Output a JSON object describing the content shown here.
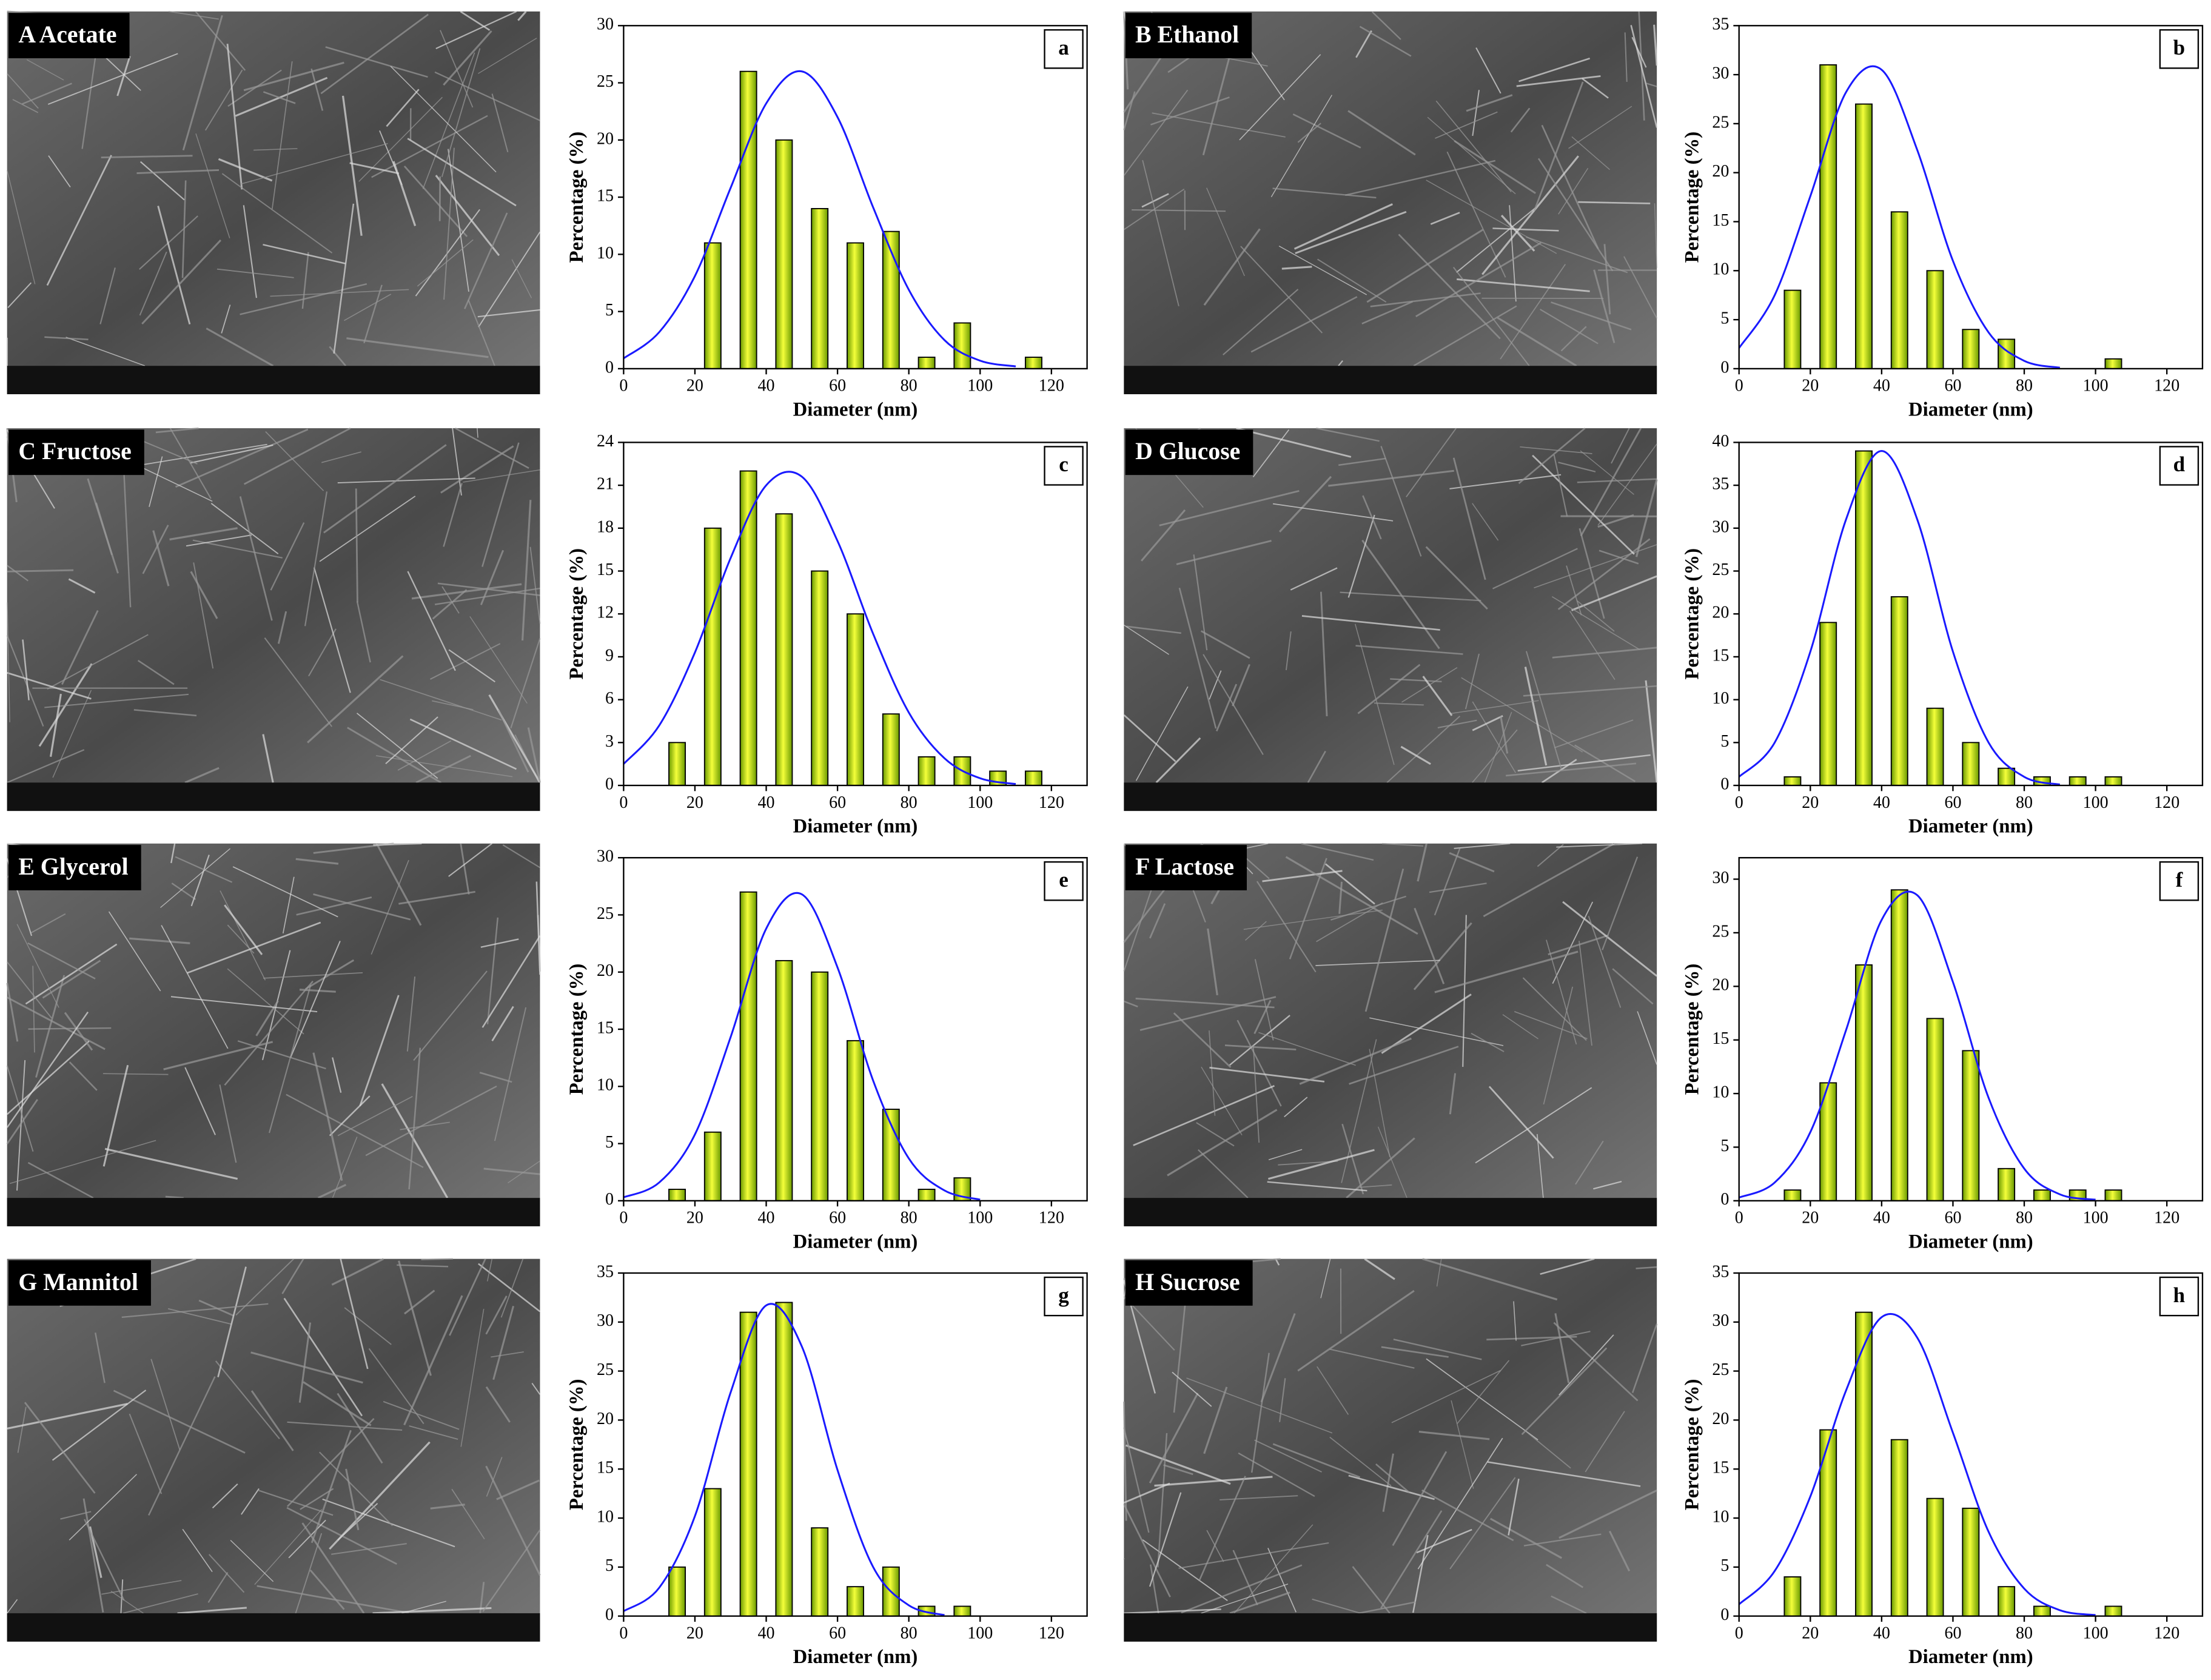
{
  "images": [
    {
      "label": "A Acetate"
    },
    {
      "label": "B Ethanol"
    },
    {
      "label": "C Fructose"
    },
    {
      "label": "D Glucose"
    },
    {
      "label": "E Glycerol"
    },
    {
      "label": "F Lactose"
    },
    {
      "label": "G Mannitol"
    },
    {
      "label": "H Sucrose"
    }
  ],
  "chart_data": [
    {
      "type": "bar",
      "panel_label": "a",
      "xlabel": "Diameter (nm)",
      "ylabel": "Percentage (%)",
      "color": "#c6e600",
      "x": [
        25,
        35,
        45,
        55,
        65,
        75,
        85,
        95,
        115
      ],
      "values": [
        11,
        26,
        20,
        14,
        11,
        12,
        1,
        4,
        1
      ],
      "xlim": [
        0,
        130
      ],
      "xticks": [
        0,
        20,
        40,
        60,
        80,
        100,
        120
      ],
      "ylim": [
        0,
        30
      ],
      "yticks": [
        0,
        5,
        10,
        15,
        20,
        25,
        30
      ],
      "fit": {
        "color": "#1a1aff",
        "x": [
          0,
          10,
          20,
          30,
          40,
          50,
          60,
          70,
          80,
          90,
          100,
          110
        ],
        "values": [
          0.9,
          3.2,
          8.1,
          15.8,
          23.2,
          26.0,
          22.0,
          14.1,
          6.9,
          2.5,
          0.7,
          0.2
        ]
      }
    },
    {
      "type": "bar",
      "panel_label": "b",
      "xlabel": "Diameter (nm)",
      "ylabel": "Percentage (%)",
      "color": "#c6e600",
      "x": [
        15,
        25,
        35,
        45,
        55,
        65,
        75,
        105
      ],
      "values": [
        8,
        31,
        27,
        16,
        10,
        4,
        3,
        1
      ],
      "xlim": [
        0,
        130
      ],
      "xticks": [
        0,
        20,
        40,
        60,
        80,
        100,
        120
      ],
      "ylim": [
        0,
        35
      ],
      "yticks": [
        0,
        5,
        10,
        15,
        20,
        25,
        30,
        35
      ],
      "fit": {
        "color": "#1a1aff",
        "x": [
          0,
          10,
          20,
          30,
          40,
          50,
          60,
          70,
          80,
          90
        ],
        "values": [
          2.1,
          7.5,
          17.6,
          28.2,
          30.5,
          22.3,
          11.0,
          3.7,
          0.8,
          0.1
        ]
      }
    },
    {
      "type": "bar",
      "panel_label": "c",
      "xlabel": "Diameter (nm)",
      "ylabel": "Percentage (%)",
      "color": "#c6e600",
      "x": [
        15,
        25,
        35,
        45,
        55,
        65,
        75,
        85,
        95,
        105,
        115
      ],
      "values": [
        3,
        18,
        22,
        19,
        15,
        12,
        5,
        2,
        2,
        1,
        1
      ],
      "xlim": [
        0,
        130
      ],
      "xticks": [
        0,
        20,
        40,
        60,
        80,
        100,
        120
      ],
      "ylim": [
        0,
        24
      ],
      "yticks": [
        0,
        3,
        6,
        9,
        12,
        15,
        18,
        21,
        24
      ],
      "fit": {
        "color": "#1a1aff",
        "x": [
          0,
          10,
          20,
          30,
          40,
          50,
          60,
          70,
          80,
          90,
          100,
          110
        ],
        "values": [
          1.5,
          4.2,
          9.3,
          15.9,
          21.0,
          21.6,
          17.1,
          10.6,
          5.1,
          1.9,
          0.5,
          0.1
        ]
      }
    },
    {
      "type": "bar",
      "panel_label": "d",
      "xlabel": "Diameter (nm)",
      "ylabel": "Percentage (%)",
      "color": "#c6e600",
      "x": [
        15,
        25,
        35,
        45,
        55,
        65,
        75,
        85,
        95,
        105
      ],
      "values": [
        1,
        19,
        39,
        22,
        9,
        5,
        2,
        1,
        1,
        1
      ],
      "xlim": [
        0,
        130
      ],
      "xticks": [
        0,
        20,
        40,
        60,
        80,
        100,
        120
      ],
      "ylim": [
        0,
        40
      ],
      "yticks": [
        0,
        5,
        10,
        15,
        20,
        25,
        30,
        35,
        40
      ],
      "fit": {
        "color": "#1a1aff",
        "x": [
          0,
          10,
          20,
          30,
          40,
          50,
          60,
          70,
          80,
          90
        ],
        "values": [
          1.0,
          5.0,
          15.6,
          31.0,
          39.0,
          31.0,
          15.6,
          5.0,
          1.0,
          0.1
        ]
      }
    },
    {
      "type": "bar",
      "panel_label": "e",
      "xlabel": "Diameter (nm)",
      "ylabel": "Percentage (%)",
      "color": "#c6e600",
      "x": [
        15,
        25,
        35,
        45,
        55,
        65,
        75,
        85,
        95
      ],
      "values": [
        1,
        6,
        27,
        21,
        20,
        14,
        8,
        1,
        2
      ],
      "xlim": [
        0,
        130
      ],
      "xticks": [
        0,
        20,
        40,
        60,
        80,
        100,
        120
      ],
      "ylim": [
        0,
        30
      ],
      "yticks": [
        0,
        5,
        10,
        15,
        20,
        25,
        30
      ],
      "fit": {
        "color": "#1a1aff",
        "x": [
          0,
          10,
          20,
          30,
          40,
          50,
          60,
          70,
          80,
          90,
          100
        ],
        "values": [
          0.3,
          1.6,
          5.8,
          14.3,
          23.8,
          26.8,
          20.4,
          10.5,
          3.7,
          0.9,
          0.1
        ]
      }
    },
    {
      "type": "bar",
      "panel_label": "f",
      "xlabel": "Diameter (nm)",
      "ylabel": "Percentage (%)",
      "color": "#c6e600",
      "x": [
        15,
        25,
        35,
        45,
        55,
        65,
        75,
        85,
        95,
        105
      ],
      "values": [
        1,
        11,
        22,
        29,
        17,
        14,
        3,
        1,
        1,
        1
      ],
      "xlim": [
        0,
        130
      ],
      "xticks": [
        0,
        20,
        40,
        60,
        80,
        100,
        120
      ],
      "ylim": [
        0,
        32
      ],
      "yticks": [
        0,
        5,
        10,
        15,
        20,
        25,
        30
      ],
      "fit": {
        "color": "#1a1aff",
        "x": [
          0,
          10,
          20,
          30,
          40,
          50,
          60,
          70,
          80,
          90,
          100
        ],
        "values": [
          0.3,
          1.7,
          6.4,
          15.9,
          26.2,
          28.5,
          20.4,
          9.6,
          3.0,
          0.6,
          0.1
        ]
      }
    },
    {
      "type": "bar",
      "panel_label": "g",
      "xlabel": "Diameter (nm)",
      "ylabel": "Percentage (%)",
      "color": "#c6e600",
      "x": [
        15,
        25,
        35,
        45,
        55,
        65,
        75,
        85,
        95
      ],
      "values": [
        5,
        13,
        31,
        32,
        9,
        3,
        5,
        1,
        1
      ],
      "xlim": [
        0,
        130
      ],
      "xticks": [
        0,
        20,
        40,
        60,
        80,
        100,
        120
      ],
      "ylim": [
        0,
        35
      ],
      "yticks": [
        0,
        5,
        10,
        15,
        20,
        25,
        30,
        35
      ],
      "fit": {
        "color": "#1a1aff",
        "x": [
          0,
          10,
          20,
          30,
          40,
          50,
          60,
          70,
          80,
          90
        ],
        "values": [
          0.5,
          2.9,
          10.2,
          22.8,
          31.7,
          27.5,
          14.9,
          5.0,
          1.1,
          0.1
        ]
      }
    },
    {
      "type": "bar",
      "panel_label": "h",
      "xlabel": "Diameter (nm)",
      "ylabel": "Percentage (%)",
      "color": "#c6e600",
      "x": [
        15,
        25,
        35,
        45,
        55,
        65,
        75,
        85,
        105
      ],
      "values": [
        4,
        19,
        31,
        18,
        12,
        11,
        3,
        1,
        1
      ],
      "xlim": [
        0,
        130
      ],
      "xticks": [
        0,
        20,
        40,
        60,
        80,
        100,
        120
      ],
      "ylim": [
        0,
        35
      ],
      "yticks": [
        0,
        5,
        10,
        15,
        20,
        25,
        30,
        35
      ],
      "fit": {
        "color": "#1a1aff",
        "x": [
          0,
          10,
          20,
          30,
          40,
          50,
          60,
          70,
          80,
          90,
          100
        ],
        "values": [
          1.2,
          4.6,
          12.2,
          23.0,
          30.5,
          28.4,
          18.7,
          8.6,
          2.8,
          0.6,
          0.1
        ]
      }
    }
  ]
}
